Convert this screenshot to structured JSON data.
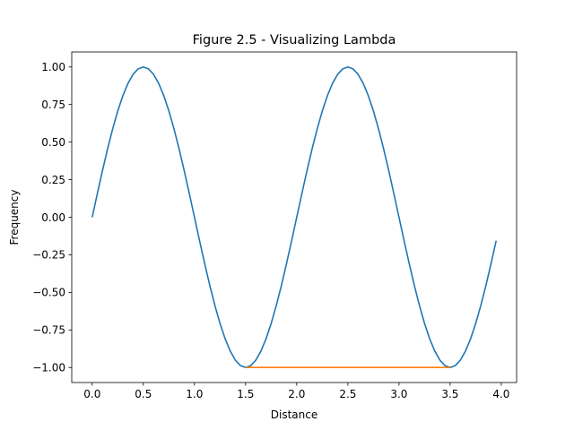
{
  "chart_data": {
    "type": "line",
    "title": "Figure 2.5 - Visualizing Lambda",
    "xlabel": "Distance",
    "ylabel": "Frequency",
    "xlim": [
      -0.2,
      4.15
    ],
    "ylim": [
      -1.1,
      1.1
    ],
    "x_ticks": [
      0.0,
      0.5,
      1.0,
      1.5,
      2.0,
      2.5,
      3.0,
      3.5,
      4.0
    ],
    "x_tick_labels": [
      "0.0",
      "0.5",
      "1.0",
      "1.5",
      "2.0",
      "2.5",
      "3.0",
      "3.5",
      "4.0"
    ],
    "y_ticks": [
      -1.0,
      -0.75,
      -0.5,
      -0.25,
      0.0,
      0.25,
      0.5,
      0.75,
      1.0
    ],
    "y_tick_labels": [
      "−1.00",
      "−0.75",
      "−0.50",
      "−0.25",
      "0.00",
      "0.25",
      "0.50",
      "0.75",
      "1.00"
    ],
    "grid": false,
    "legend": false,
    "series": [
      {
        "color": "#1f77b4",
        "function": "sin(pi * x)",
        "x_start": 0.0,
        "x_end": 3.95,
        "x_step": 0.05
      },
      {
        "color": "#ff7f0e",
        "x": [
          1.5,
          3.5
        ],
        "y": [
          -1.0,
          -1.0
        ]
      }
    ]
  }
}
